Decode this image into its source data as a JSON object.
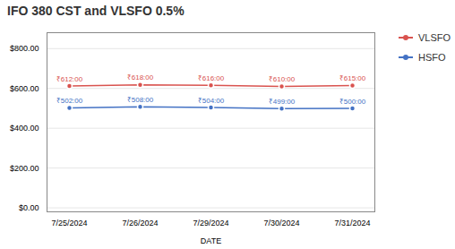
{
  "chart_data": {
    "type": "line",
    "title": "IFO 380 CST and VLSFO 0.5%",
    "xlabel": "DATE",
    "categories": [
      "7/25/2024",
      "7/26/2024",
      "7/29/2024",
      "7/30/2024",
      "7/31/2024"
    ],
    "series": [
      {
        "name": "VLSFO",
        "color": "#D9534F",
        "marker": "circle",
        "values": [
          612.0,
          618.0,
          616.0,
          610.0,
          615.0
        ],
        "value_labels": [
          "₹612:00",
          "₹618:00",
          "₹616:00",
          "₹610:00",
          "₹615:00"
        ]
      },
      {
        "name": "HSFO",
        "color": "#4472C4",
        "marker": "circle",
        "values": [
          502.0,
          508.0,
          504.0,
          499.0,
          500.0
        ],
        "value_labels": [
          "₹502:00",
          "₹508:00",
          "₹504:00",
          "₹499:00",
          "₹500:00"
        ]
      }
    ],
    "ylim": [
      -20,
      880
    ],
    "yticks": [
      {
        "value": 0,
        "label": "$0.00"
      },
      {
        "value": 200,
        "label": "$200.00"
      },
      {
        "value": 400,
        "label": "$400.00"
      },
      {
        "value": 600,
        "label": "$600.00"
      },
      {
        "value": 800,
        "label": "$800.00"
      }
    ],
    "grid": true,
    "legend": "right",
    "data_labels": true
  }
}
